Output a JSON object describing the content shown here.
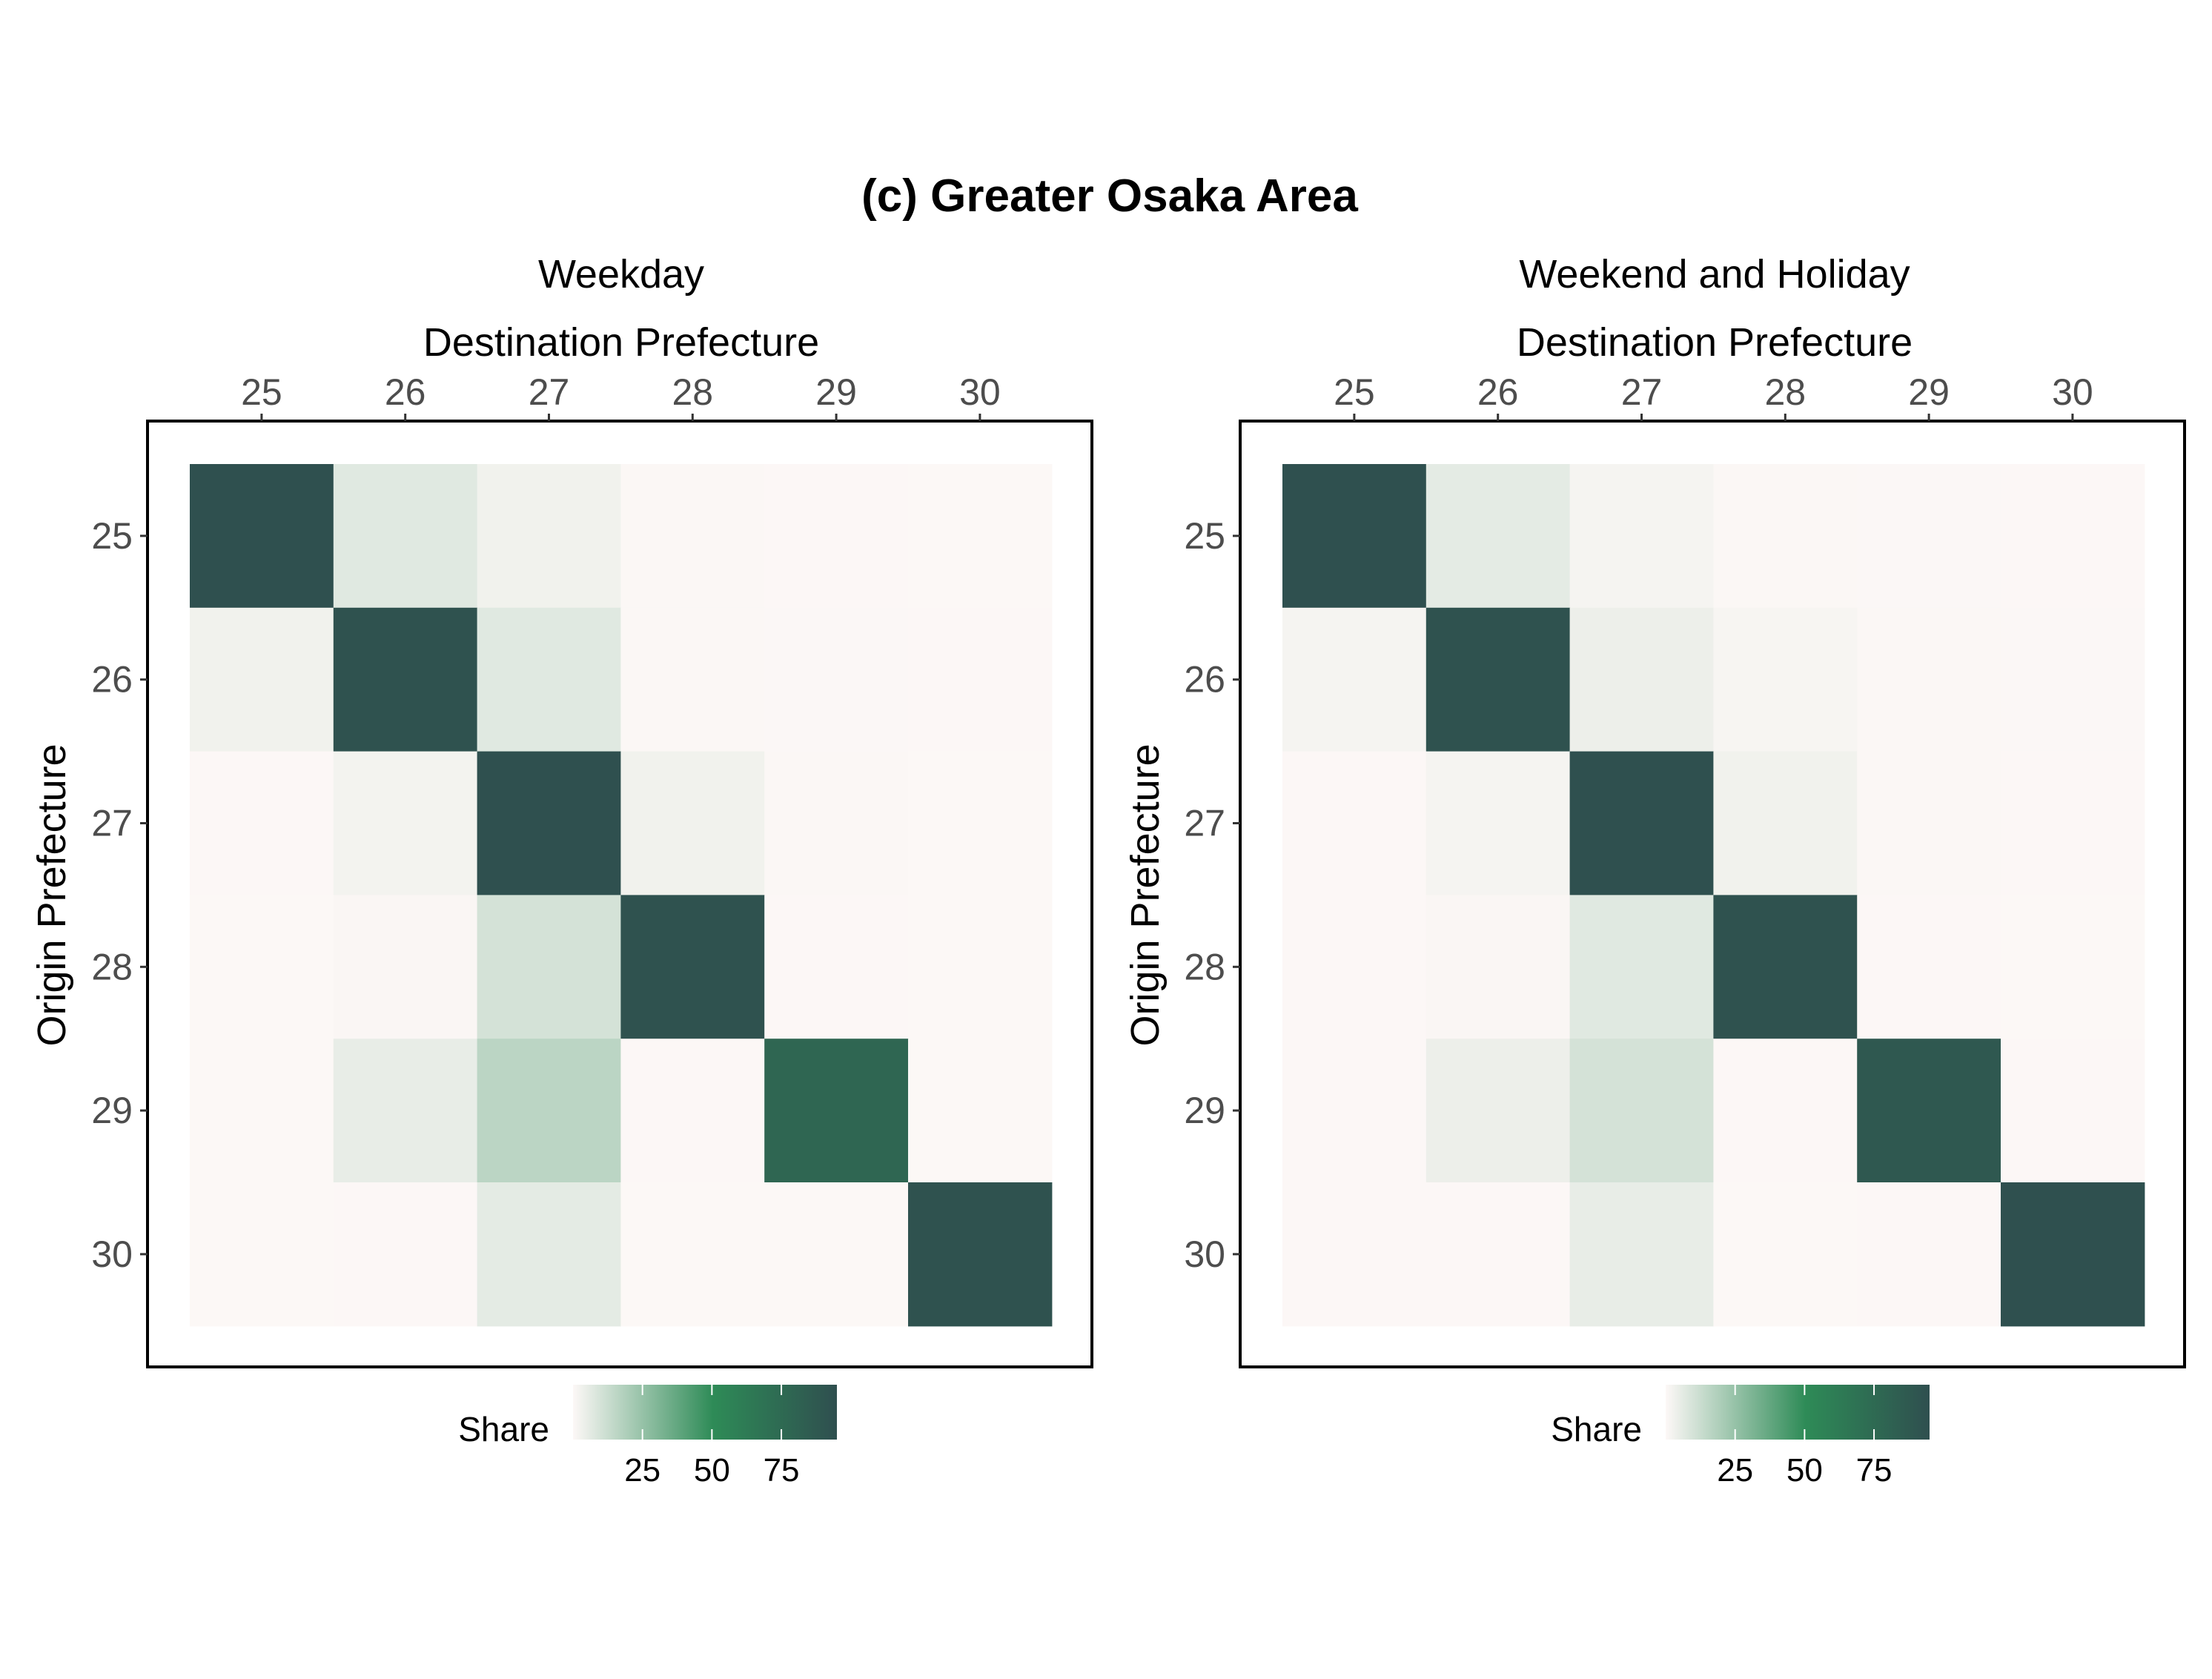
{
  "chart_data": {
    "type": "heatmap",
    "title": "(c) Greater Osaka Area",
    "categories": [
      "25",
      "26",
      "27",
      "28",
      "29",
      "30"
    ],
    "xlabel": "Destination Prefecture",
    "ylabel": "Origin Prefecture",
    "x_axis_position": "top",
    "legend": {
      "title": "Share",
      "placement": "bottom",
      "ticks": [
        25,
        50,
        75
      ],
      "range": [
        0,
        95
      ],
      "colors": [
        "#fdf8f7",
        "#2e8b57",
        "#2f4f4f"
      ]
    },
    "panels": [
      {
        "name": "Weekday",
        "origins": [
          "25",
          "26",
          "27",
          "28",
          "29",
          "30"
        ],
        "destinations": [
          "25",
          "26",
          "27",
          "28",
          "29",
          "30"
        ],
        "values": [
          [
            94,
            7,
            3,
            0.5,
            0.3,
            0.2
          ],
          [
            3,
            93,
            7,
            0.6,
            0.4,
            0.3
          ],
          [
            0.3,
            2.5,
            94,
            3,
            0.5,
            0.2
          ],
          [
            0.2,
            0.8,
            10,
            93,
            0.3,
            0.2
          ],
          [
            0.2,
            5,
            16,
            0.3,
            78,
            0.2
          ],
          [
            0.2,
            0.3,
            6,
            0.2,
            0.2,
            93
          ]
        ]
      },
      {
        "name": "Weekend and Holiday",
        "origins": [
          "25",
          "26",
          "27",
          "28",
          "29",
          "30"
        ],
        "destinations": [
          "25",
          "26",
          "27",
          "28",
          "29",
          "30"
        ],
        "values": [
          [
            94,
            6,
            2,
            0.6,
            0.4,
            0.3
          ],
          [
            2,
            93,
            4,
            1.5,
            0.6,
            0.4
          ],
          [
            0.3,
            2,
            94,
            3,
            0.6,
            0.3
          ],
          [
            0.3,
            0.8,
            7,
            93,
            0.3,
            0.2
          ],
          [
            0.3,
            4,
            10,
            0.3,
            88,
            0.3
          ],
          [
            0.3,
            0.3,
            5,
            0.2,
            0.3,
            94
          ]
        ]
      }
    ]
  }
}
